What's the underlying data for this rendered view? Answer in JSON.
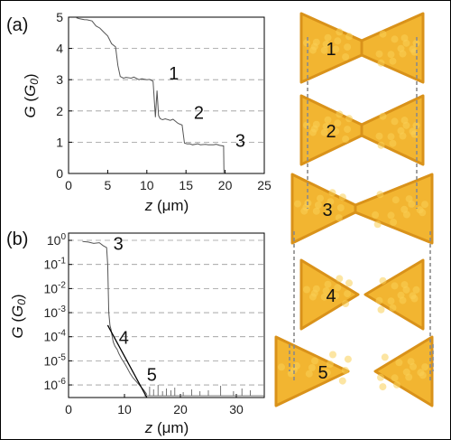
{
  "chart_data": [
    {
      "type": "line",
      "panel_label": "(a)",
      "xlabel": "z (μm)",
      "ylabel": "G (G0)",
      "xlim": [
        0,
        25
      ],
      "ylim": [
        0,
        5
      ],
      "xticks": [
        "0",
        "5",
        "10",
        "15",
        "20",
        "25"
      ],
      "yticks": [
        "0",
        "1",
        "2",
        "3",
        "4",
        "5"
      ],
      "grid": "horizontal dashed",
      "series": [
        {
          "x": [
            1.0,
            2.0,
            3.0,
            3.5,
            4.0,
            4.5,
            5.0,
            5.5,
            6.0,
            6.3,
            6.6,
            7.0,
            8.0,
            9.0,
            10.0,
            10.8,
            11.1,
            11.3,
            11.5,
            11.7,
            12.0,
            13.0,
            14.0,
            14.5,
            14.8,
            15.5,
            16.5,
            17.5,
            18.5,
            19.3,
            19.8,
            19.85
          ],
          "y": [
            4.98,
            4.92,
            4.88,
            4.72,
            4.65,
            4.52,
            4.4,
            4.15,
            4.05,
            3.45,
            3.1,
            3.05,
            3.05,
            3.0,
            3.0,
            2.95,
            1.8,
            2.65,
            1.85,
            1.75,
            1.72,
            1.7,
            1.6,
            1.55,
            0.97,
            0.95,
            0.95,
            0.93,
            0.92,
            0.9,
            0.88,
            0.0
          ]
        }
      ],
      "annotations": [
        {
          "text": "1",
          "x": 12.8,
          "y": 3.0
        },
        {
          "text": "2",
          "x": 16.0,
          "y": 1.75
        },
        {
          "text": "3",
          "x": 21.3,
          "y": 0.85
        }
      ]
    },
    {
      "type": "line",
      "panel_label": "(b)",
      "xlabel": "z (μm)",
      "ylabel": "G (G0)",
      "yscale": "log",
      "xlim": [
        0,
        35
      ],
      "ylim": [
        3e-07,
        2
      ],
      "xticks": [
        "0",
        "10",
        "20",
        "30"
      ],
      "yticks": [
        "10^0",
        "10^-1",
        "10^-2",
        "10^-3",
        "10^-4",
        "10^-5",
        "10^-6"
      ],
      "grid": "horizontal dashed",
      "series": [
        {
          "x": [
            2.5,
            3.5,
            4.5,
            5.5,
            6.2,
            6.8,
            7.0,
            7.2,
            7.4,
            7.6,
            7.8,
            8.0,
            8.3,
            8.7,
            9.0,
            9.5,
            10.0,
            10.5,
            11.0,
            11.5,
            12.0,
            12.5,
            13.0,
            13.5,
            14.0
          ],
          "y": [
            0.9,
            0.85,
            0.75,
            0.8,
            0.6,
            0.5,
            0.1,
            0.001,
            0.0003,
            0.0002,
            0.0001,
            6e-05,
            4e-05,
            3e-05,
            2e-05,
            1.2e-05,
            8e-06,
            5e-06,
            3e-06,
            2e-06,
            1.5e-06,
            1.1e-06,
            8e-07,
            6e-07,
            4e-07
          ]
        },
        {
          "x": [
            7.0,
            14.0
          ],
          "y": [
            0.0003,
            3e-07
          ]
        }
      ],
      "annotations": [
        {
          "text": "3",
          "x": 8.0,
          "y": 0.4
        },
        {
          "text": "4",
          "x": 9.0,
          "y": 5e-05
        },
        {
          "text": "5",
          "x": 14.0,
          "y": 1.5e-06
        }
      ]
    }
  ],
  "panel_labels": {
    "a": "(a)",
    "b": "(b)"
  },
  "axes_a": {
    "ylabel_main": "G",
    "ylabel_unit_open": "(",
    "ylabel_unit": "G",
    "ylabel_unit_sub": "0",
    "ylabel_unit_close": ")",
    "xlabel_var": "z",
    "xlabel_unit": " (μm)"
  },
  "axes_b": {
    "ylabel_main": "G",
    "ylabel_unit_open": "(",
    "ylabel_unit": "G",
    "ylabel_unit_sub": "0",
    "ylabel_unit_close": ")",
    "xlabel_var": "z",
    "xlabel_unit": " (μm)"
  },
  "log_ticks": [
    {
      "base": "10",
      "exp": "0"
    },
    {
      "base": "10",
      "exp": "-1"
    },
    {
      "base": "10",
      "exp": "-2"
    },
    {
      "base": "10",
      "exp": "-3"
    },
    {
      "base": "10",
      "exp": "-4"
    },
    {
      "base": "10",
      "exp": "-5"
    },
    {
      "base": "10",
      "exp": "-6"
    }
  ],
  "stages": [
    {
      "label": "1"
    },
    {
      "label": "2"
    },
    {
      "label": "3"
    },
    {
      "label": "4"
    },
    {
      "label": "5"
    }
  ],
  "colors": {
    "cluster_fill": "#f2b531",
    "cluster_shade": "#d9921a",
    "cluster_highlight": "#f9cf56",
    "trace": "#555555",
    "fit_line": "#000000",
    "guide": "#8a8a8a"
  }
}
